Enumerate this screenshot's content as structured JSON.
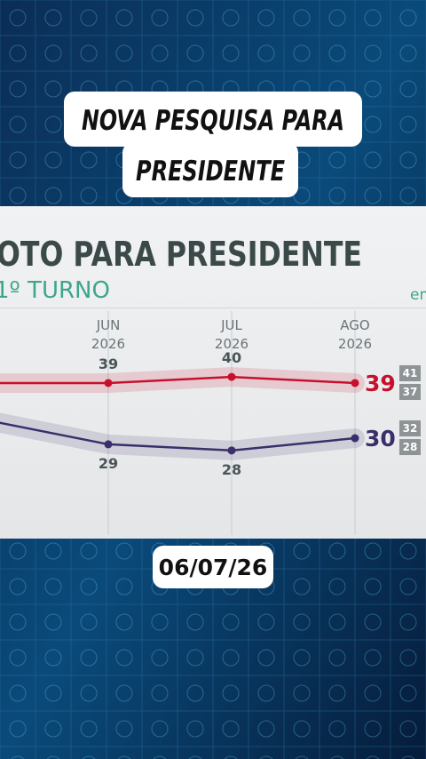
{
  "caption": {
    "line1": "NOVA PESQUISA PARA",
    "line2": "PRESIDENTE"
  },
  "date": "06/07/26",
  "chart_data": {
    "type": "line",
    "title": "OTO PARA PRESIDENTE",
    "subtitle": "1º TURNO",
    "note": "em",
    "categories": [
      null,
      "JUN",
      "JUL",
      "AGO"
    ],
    "category_years": [
      null,
      "2026",
      "2026",
      "2026"
    ],
    "ylim": [
      20,
      45
    ],
    "grid": true,
    "series": [
      {
        "color": "#c8102e",
        "values": [
          39,
          39,
          40,
          39
        ],
        "upper": 41,
        "lower": 37
      },
      {
        "color": "#3a2f6b",
        "values": [
          33,
          29,
          28,
          30
        ],
        "upper": 32,
        "lower": 28
      }
    ]
  }
}
